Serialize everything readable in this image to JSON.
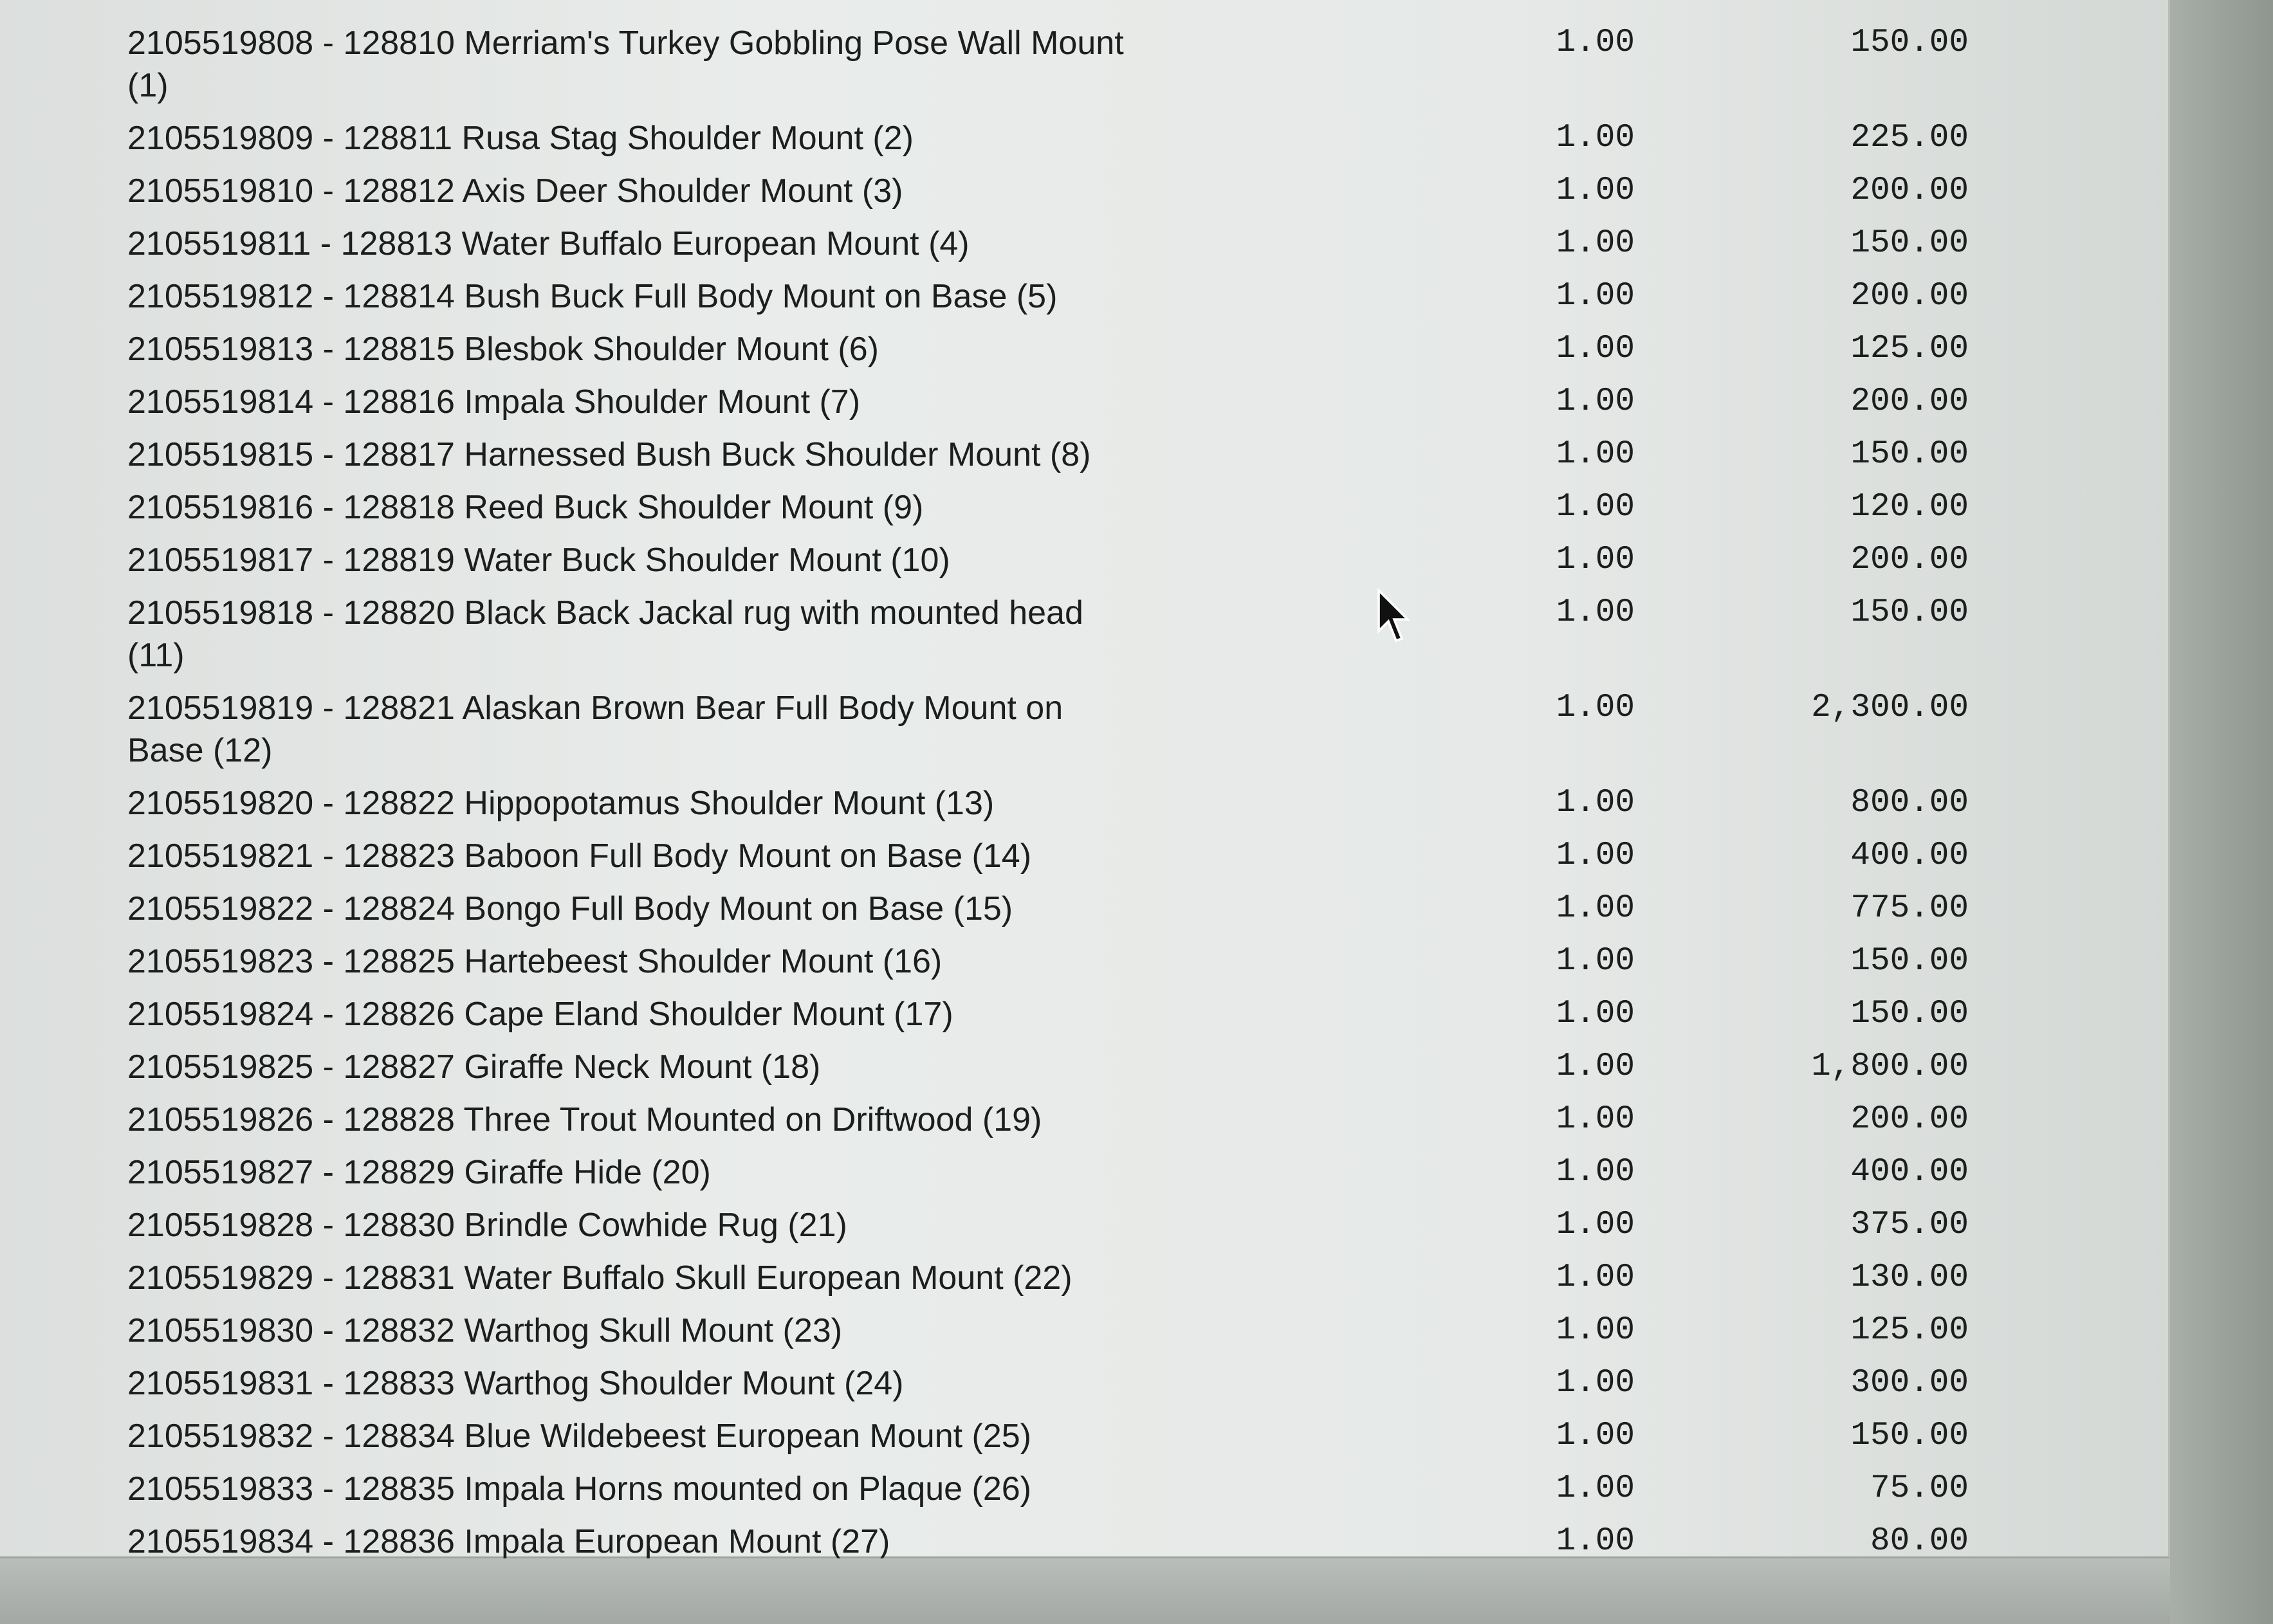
{
  "line_items": [
    {
      "id": "2105519808",
      "desc": "128810 Merriam's Turkey Gobbling Pose Wall Mount (1)",
      "qty": "1.00",
      "amount": "150.00"
    },
    {
      "id": "2105519809",
      "desc": "128811 Rusa Stag Shoulder Mount (2)",
      "qty": "1.00",
      "amount": "225.00"
    },
    {
      "id": "2105519810",
      "desc": "128812 Axis Deer Shoulder Mount (3)",
      "qty": "1.00",
      "amount": "200.00"
    },
    {
      "id": "2105519811",
      "desc": "128813 Water Buffalo European Mount (4)",
      "qty": "1.00",
      "amount": "150.00"
    },
    {
      "id": "2105519812",
      "desc": "128814 Bush Buck Full Body Mount on Base (5)",
      "qty": "1.00",
      "amount": "200.00"
    },
    {
      "id": "2105519813",
      "desc": "128815 Blesbok Shoulder Mount (6)",
      "qty": "1.00",
      "amount": "125.00"
    },
    {
      "id": "2105519814",
      "desc": "128816 Impala Shoulder Mount (7)",
      "qty": "1.00",
      "amount": "200.00"
    },
    {
      "id": "2105519815",
      "desc": "128817 Harnessed Bush Buck Shoulder Mount (8)",
      "qty": "1.00",
      "amount": "150.00"
    },
    {
      "id": "2105519816",
      "desc": "128818 Reed Buck Shoulder Mount (9)",
      "qty": "1.00",
      "amount": "120.00"
    },
    {
      "id": "2105519817",
      "desc": "128819 Water Buck Shoulder Mount (10)",
      "qty": "1.00",
      "amount": "200.00"
    },
    {
      "id": "2105519818",
      "desc": "128820 Black Back Jackal rug with mounted head (11)",
      "qty": "1.00",
      "amount": "150.00"
    },
    {
      "id": "2105519819",
      "desc": "128821 Alaskan Brown Bear Full Body Mount on Base (12)",
      "qty": "1.00",
      "amount": "2,300.00"
    },
    {
      "id": "2105519820",
      "desc": "128822 Hippopotamus Shoulder Mount (13)",
      "qty": "1.00",
      "amount": "800.00"
    },
    {
      "id": "2105519821",
      "desc": "128823 Baboon Full Body Mount on Base (14)",
      "qty": "1.00",
      "amount": "400.00"
    },
    {
      "id": "2105519822",
      "desc": "128824 Bongo Full Body Mount on Base (15)",
      "qty": "1.00",
      "amount": "775.00"
    },
    {
      "id": "2105519823",
      "desc": "128825 Hartebeest Shoulder Mount (16)",
      "qty": "1.00",
      "amount": "150.00"
    },
    {
      "id": "2105519824",
      "desc": "128826 Cape Eland Shoulder Mount (17)",
      "qty": "1.00",
      "amount": "150.00"
    },
    {
      "id": "2105519825",
      "desc": "128827 Giraffe Neck Mount (18)",
      "qty": "1.00",
      "amount": "1,800.00"
    },
    {
      "id": "2105519826",
      "desc": "128828 Three Trout Mounted on Driftwood (19)",
      "qty": "1.00",
      "amount": "200.00"
    },
    {
      "id": "2105519827",
      "desc": "128829 Giraffe Hide (20)",
      "qty": "1.00",
      "amount": "400.00"
    },
    {
      "id": "2105519828",
      "desc": "128830 Brindle Cowhide Rug (21)",
      "qty": "1.00",
      "amount": "375.00"
    },
    {
      "id": "2105519829",
      "desc": "128831 Water Buffalo Skull European Mount (22)",
      "qty": "1.00",
      "amount": "130.00"
    },
    {
      "id": "2105519830",
      "desc": "128832 Warthog Skull Mount (23)",
      "qty": "1.00",
      "amount": "125.00"
    },
    {
      "id": "2105519831",
      "desc": "128833 Warthog Shoulder Mount (24)",
      "qty": "1.00",
      "amount": "300.00"
    },
    {
      "id": "2105519832",
      "desc": "128834 Blue Wildebeest European Mount (25)",
      "qty": "1.00",
      "amount": "150.00"
    },
    {
      "id": "2105519833",
      "desc": "128835 Impala Horns mounted on Plaque (26)",
      "qty": "1.00",
      "amount": "75.00"
    },
    {
      "id": "2105519834",
      "desc": "128836 Impala European Mount (27)",
      "qty": "1.00",
      "amount": "80.00"
    }
  ],
  "separator": " - ",
  "cursor_icon": "arrow-pointer-icon"
}
